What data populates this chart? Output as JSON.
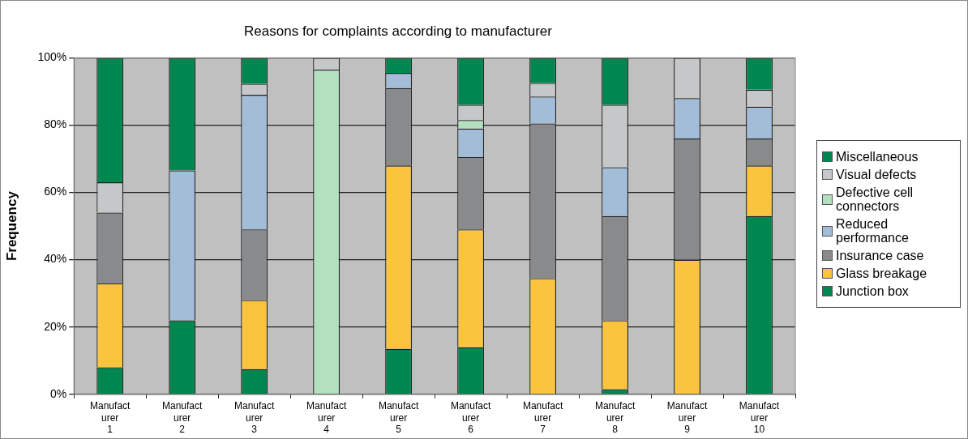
{
  "chart_data": {
    "type": "bar",
    "title": "Reasons for complaints according to manufacturer",
    "ylabel": "Frequency",
    "categories": [
      "Manufacturer 1",
      "Manufacturer 2",
      "Manufacturer 3",
      "Manufacturer 4",
      "Manufacturer 5",
      "Manufacturer 6",
      "Manufacturer 7",
      "Manufacturer 8",
      "Manufacturer 9",
      "Manufacturer 10"
    ],
    "stacked": true,
    "ylim": [
      0,
      100
    ],
    "yticks": [
      {
        "value": 0,
        "label": "0%"
      },
      {
        "value": 20,
        "label": "20%"
      },
      {
        "value": 40,
        "label": "40%"
      },
      {
        "value": 60,
        "label": "60%"
      },
      {
        "value": 80,
        "label": "80%"
      },
      {
        "value": 100,
        "label": "100%"
      }
    ],
    "grid": "y",
    "legend": "right",
    "series": [
      {
        "name": "Junction box",
        "color": "#00874f",
        "values": [
          8,
          22,
          7.5,
          0,
          13.5,
          14,
          0,
          1.5,
          0,
          53
        ]
      },
      {
        "name": "Glass breakage",
        "color": "#fbc43f",
        "values": [
          25,
          0,
          20.5,
          0,
          54.5,
          35,
          34.5,
          20.5,
          40,
          15
        ]
      },
      {
        "name": "Insurance case",
        "color": "#898a8c",
        "values": [
          21,
          0,
          21,
          0,
          23,
          21.5,
          46,
          31,
          36,
          8
        ]
      },
      {
        "name": "Reduced performance",
        "color": "#a3bcd8",
        "values": [
          0,
          44.5,
          40,
          0,
          4.5,
          8.5,
          8,
          14.5,
          12,
          9.5
        ]
      },
      {
        "name": "Defective cell connectors",
        "color": "#b3e0bf",
        "values": [
          0,
          0,
          0,
          96.5,
          0,
          2.5,
          0,
          0,
          0,
          0
        ]
      },
      {
        "name": "Visual defects",
        "color": "#c6c7c9",
        "values": [
          9,
          0,
          3.3,
          3.5,
          0,
          4.5,
          4,
          18.5,
          12,
          5
        ]
      },
      {
        "name": "Miscellaneous",
        "color": "#00874f",
        "values": [
          37,
          33.5,
          7.7,
          0,
          4.5,
          14,
          7.5,
          14,
          0,
          9.5
        ]
      }
    ]
  }
}
